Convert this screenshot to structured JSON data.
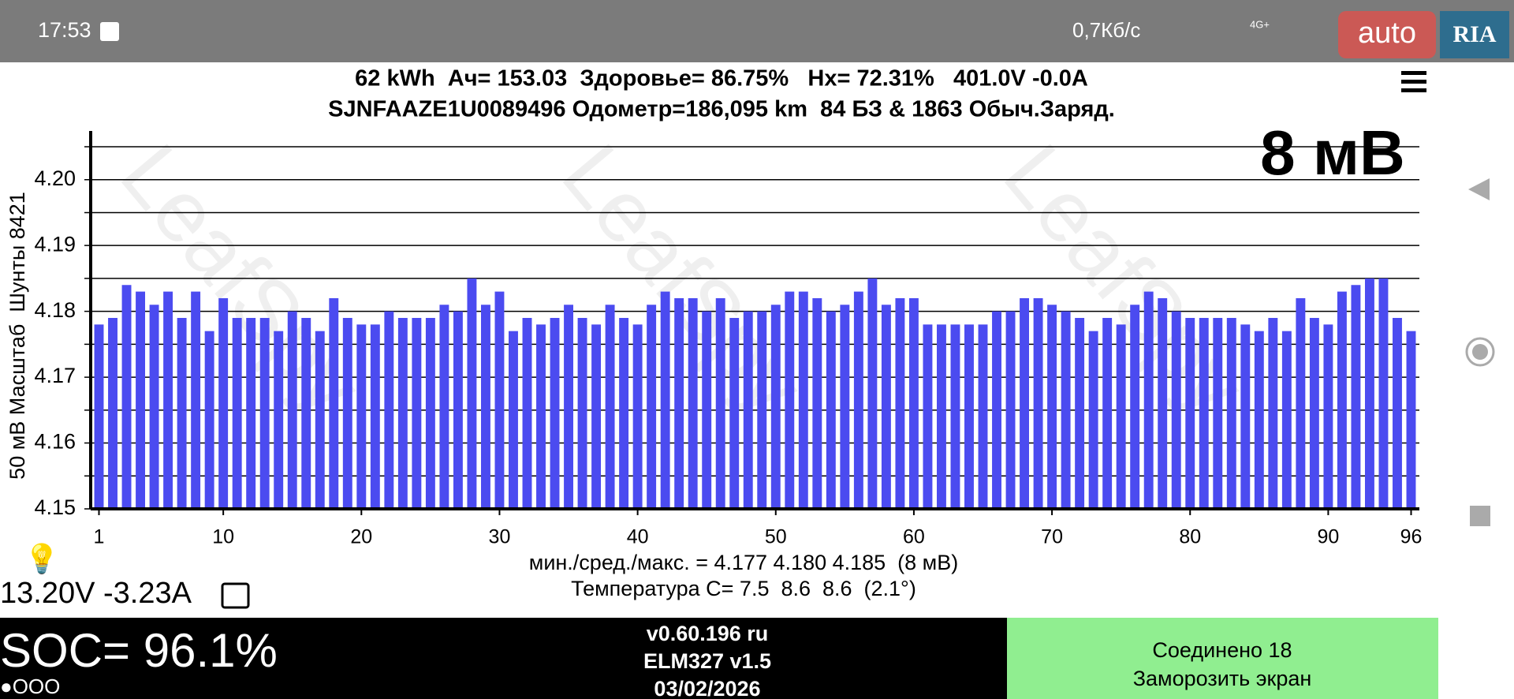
{
  "status_bar": {
    "time": "17:53",
    "network_speed": "0,7Кб/с",
    "network_type": "4G+",
    "watermark": [
      "auto",
      "RIA"
    ]
  },
  "header": {
    "line1": "62 kWh  Ач= 153.03  Здоровье= 86.75%   Hx= 72.31%   401.0V -0.0A",
    "line2": "SJNFAAZE1U0089496 Одометр=186,095 km  84 БЗ & 1863 Обыч.Заряд."
  },
  "chart_data": {
    "type": "bar",
    "color": "#4b4bf0",
    "watermark": "LeafSpy",
    "annotation": "8 мВ",
    "ylabel": "50 мВ Масштаб  Шунты 8421",
    "stats": [
      "мин./сред./макс. = 4.177 4.180 4.185  (8 мВ)",
      "Температура C= 7.5  8.6  8.6  (2.1°)"
    ],
    "x": [
      1,
      2,
      3,
      4,
      5,
      6,
      7,
      8,
      9,
      10,
      11,
      12,
      13,
      14,
      15,
      16,
      17,
      18,
      19,
      20,
      21,
      22,
      23,
      24,
      25,
      26,
      27,
      28,
      29,
      30,
      31,
      32,
      33,
      34,
      35,
      36,
      37,
      38,
      39,
      40,
      41,
      42,
      43,
      44,
      45,
      46,
      47,
      48,
      49,
      50,
      51,
      52,
      53,
      54,
      55,
      56,
      57,
      58,
      59,
      60,
      61,
      62,
      63,
      64,
      65,
      66,
      67,
      68,
      69,
      70,
      71,
      72,
      73,
      74,
      75,
      76,
      77,
      78,
      79,
      80,
      81,
      82,
      83,
      84,
      85,
      86,
      87,
      88,
      89,
      90,
      91,
      92,
      93,
      94,
      95,
      96
    ],
    "values": [
      4.178,
      4.179,
      4.184,
      4.183,
      4.181,
      4.183,
      4.179,
      4.183,
      4.177,
      4.182,
      4.179,
      4.179,
      4.179,
      4.177,
      4.18,
      4.179,
      4.177,
      4.182,
      4.179,
      4.178,
      4.178,
      4.18,
      4.179,
      4.179,
      4.179,
      4.181,
      4.18,
      4.185,
      4.181,
      4.183,
      4.177,
      4.179,
      4.178,
      4.179,
      4.181,
      4.179,
      4.178,
      4.181,
      4.179,
      4.178,
      4.181,
      4.183,
      4.182,
      4.182,
      4.18,
      4.182,
      4.179,
      4.18,
      4.18,
      4.181,
      4.183,
      4.183,
      4.182,
      4.18,
      4.181,
      4.183,
      4.185,
      4.181,
      4.182,
      4.182,
      4.178,
      4.178,
      4.178,
      4.178,
      4.178,
      4.18,
      4.18,
      4.182,
      4.182,
      4.181,
      4.18,
      4.179,
      4.177,
      4.179,
      4.178,
      4.181,
      4.183,
      4.182,
      4.18,
      4.179,
      4.179,
      4.179,
      4.179,
      4.178,
      4.177,
      4.179,
      4.177,
      4.182,
      4.179,
      4.178,
      4.183,
      4.184,
      4.185,
      4.185,
      4.179,
      4.177
    ],
    "xlim": [
      0.4,
      96.6
    ],
    "xticks": [
      1,
      10,
      20,
      30,
      40,
      50,
      60,
      70,
      80,
      90,
      96
    ],
    "ylim": [
      4.15,
      4.205
    ],
    "yticks": [
      4.15,
      4.16,
      4.17,
      4.18,
      4.19,
      {
        "value": 4.2,
        "label": "4.20"
      }
    ],
    "minor_yticks": [
      4.155,
      4.165,
      4.175,
      4.185,
      4.195,
      4.205
    ],
    "grid": true
  },
  "aux": {
    "battery_12v": "13.20V -3.23A"
  },
  "footer": {
    "soc": "SOC= 96.1%",
    "indicator": "●OOO",
    "version": [
      "v0.60.196 ru",
      "ELM327 v1.5",
      "03/02/2026"
    ],
    "status": [
      "Соединено 18",
      "Заморозить экран"
    ]
  }
}
